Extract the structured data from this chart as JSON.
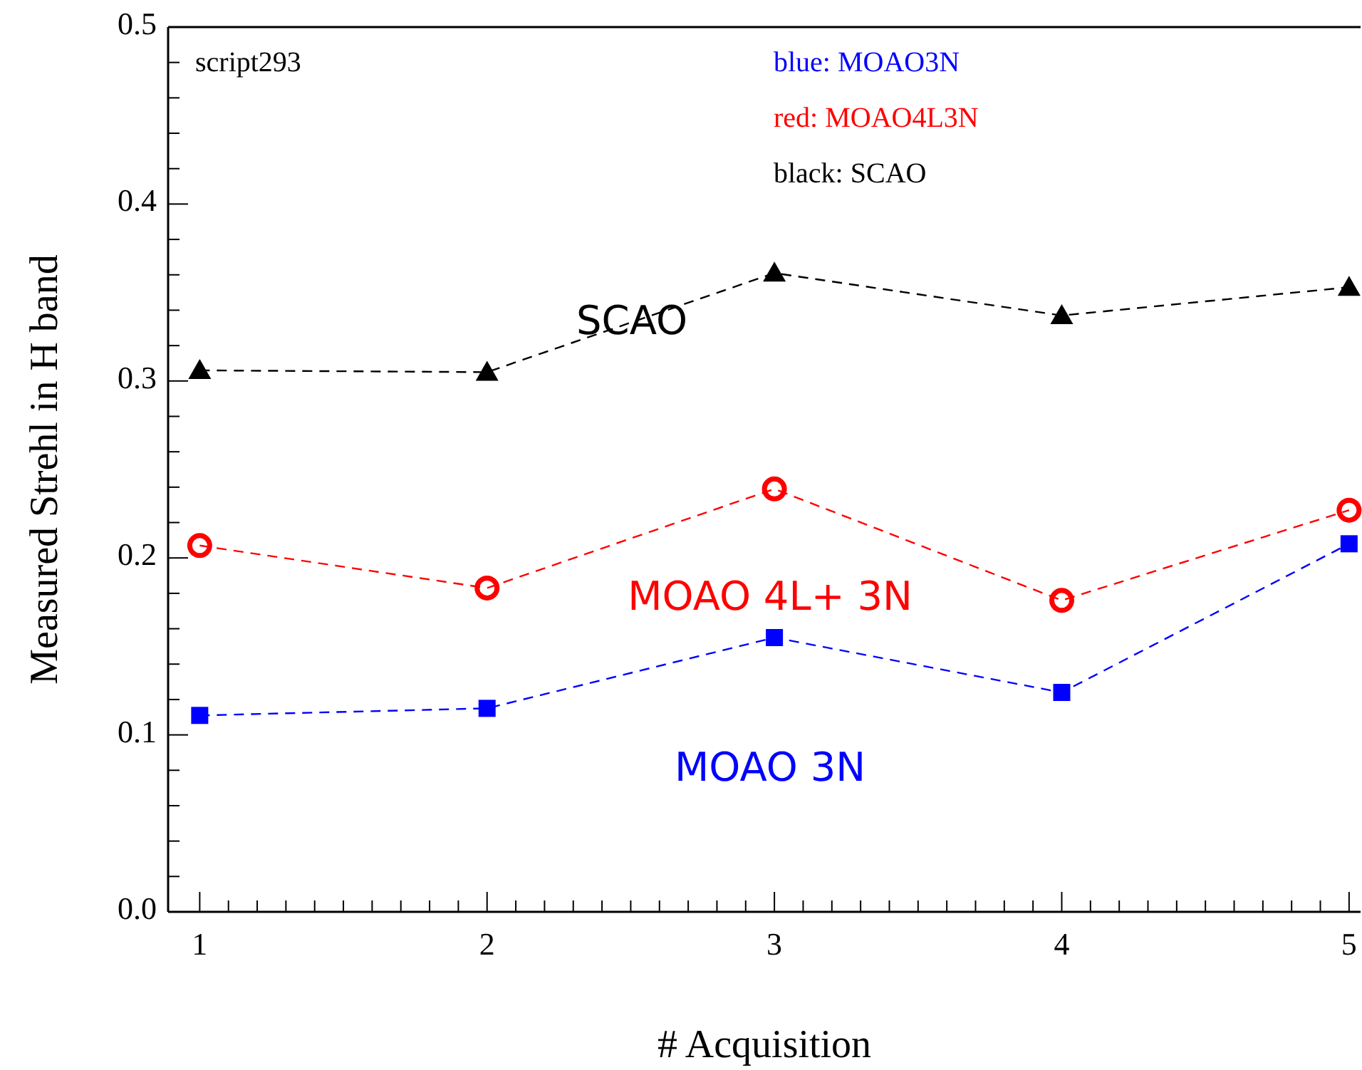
{
  "chart_data": {
    "type": "line",
    "xlabel": "# Acquisition",
    "ylabel": "Measured Strehl in H band",
    "x": [
      1,
      2,
      3,
      4,
      5
    ],
    "xlim": [
      0.89,
      5.04
    ],
    "xticks": [
      1,
      {
        "value": 1.1,
        "label": null
      },
      {
        "value": 1.2,
        "label": null
      },
      {
        "value": 1.3,
        "label": null
      },
      {
        "value": 1.4,
        "label": null
      },
      {
        "value": 1.5,
        "label": null
      },
      {
        "value": 1.6,
        "label": null
      },
      {
        "value": 1.7,
        "label": null
      },
      {
        "value": 1.8,
        "label": null
      },
      {
        "value": 1.9,
        "label": null
      },
      2,
      {
        "value": 2.1,
        "label": null
      },
      {
        "value": 2.2,
        "label": null
      },
      {
        "value": 2.3,
        "label": null
      },
      {
        "value": 2.4,
        "label": null
      },
      {
        "value": 2.5,
        "label": null
      },
      {
        "value": 2.6,
        "label": null
      },
      {
        "value": 2.7,
        "label": null
      },
      {
        "value": 2.8,
        "label": null
      },
      {
        "value": 2.9,
        "label": null
      },
      3,
      {
        "value": 3.1,
        "label": null
      },
      {
        "value": 3.2,
        "label": null
      },
      {
        "value": 3.3,
        "label": null
      },
      {
        "value": 3.4,
        "label": null
      },
      {
        "value": 3.5,
        "label": null
      },
      {
        "value": 3.6,
        "label": null
      },
      {
        "value": 3.7,
        "label": null
      },
      {
        "value": 3.8,
        "label": null
      },
      {
        "value": 3.9,
        "label": null
      },
      4,
      {
        "value": 4.1,
        "label": null
      },
      {
        "value": 4.2,
        "label": null
      },
      {
        "value": 4.3,
        "label": null
      },
      {
        "value": 4.4,
        "label": null
      },
      {
        "value": 4.5,
        "label": null
      },
      {
        "value": 4.6,
        "label": null
      },
      {
        "value": 4.7,
        "label": null
      },
      {
        "value": 4.8,
        "label": null
      },
      {
        "value": 4.9,
        "label": null
      },
      5
    ],
    "ylim": [
      0,
      0.5
    ],
    "yticks": [
      {
        "value": 0,
        "label": "0.0"
      },
      {
        "value": 0.02,
        "label": null
      },
      {
        "value": 0.04,
        "label": null
      },
      {
        "value": 0.06,
        "label": null
      },
      {
        "value": 0.08,
        "label": null
      },
      0.1,
      {
        "value": 0.12,
        "label": null
      },
      {
        "value": 0.14,
        "label": null
      },
      {
        "value": 0.16,
        "label": null
      },
      {
        "value": 0.18,
        "label": null
      },
      0.2,
      {
        "value": 0.22,
        "label": null
      },
      {
        "value": 0.24,
        "label": null
      },
      {
        "value": 0.26,
        "label": null
      },
      {
        "value": 0.28,
        "label": null
      },
      0.3,
      {
        "value": 0.32,
        "label": null
      },
      {
        "value": 0.34,
        "label": null
      },
      {
        "value": 0.36,
        "label": null
      },
      {
        "value": 0.38,
        "label": null
      },
      0.4,
      {
        "value": 0.42,
        "label": null
      },
      {
        "value": 0.44,
        "label": null
      },
      {
        "value": 0.46,
        "label": null
      },
      {
        "value": 0.48,
        "label": null
      },
      0.5
    ],
    "line_style": "dashed",
    "series": [
      {
        "name": "MOAO 3N",
        "color": "#0000ff",
        "marker": "square",
        "values": [
          0.111,
          0.115,
          0.155,
          0.124,
          0.208
        ]
      },
      {
        "name": "MOAO 4L+ 3N",
        "color": "#ff0000",
        "marker": "circle",
        "values": [
          0.207,
          0.183,
          0.239,
          0.176,
          0.227
        ]
      },
      {
        "name": "SCAO",
        "color": "#000000",
        "marker": "triangle",
        "values": [
          0.306,
          0.305,
          0.361,
          0.337,
          0.353
        ]
      }
    ],
    "annotations": [
      "script293",
      "blue: MOAO3N",
      "red: MOAO4L3N",
      "black: SCAO"
    ]
  }
}
